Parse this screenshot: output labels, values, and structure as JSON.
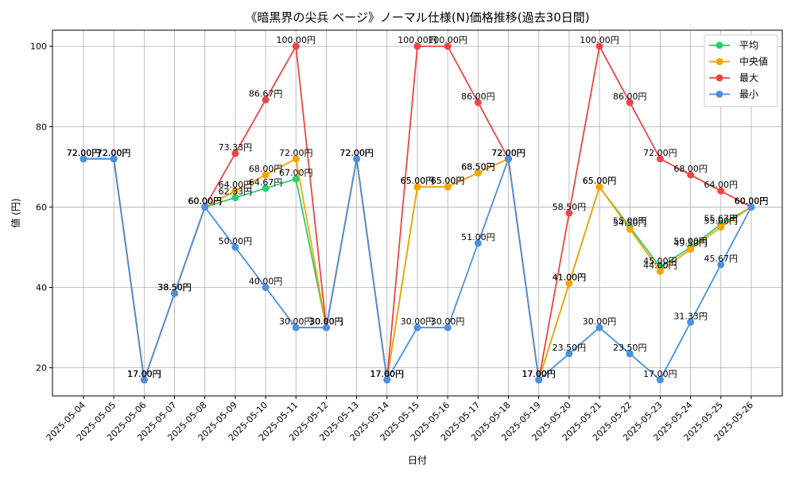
{
  "chart_data": {
    "type": "line",
    "title": "《暗黒界の尖兵 ベージ》ノーマル仕様(N)価格推移(過去30日間)",
    "xlabel": "日付",
    "ylabel": "値 (円)",
    "ylim": [
      13,
      104
    ],
    "yticks": [
      20,
      40,
      60,
      80,
      100
    ],
    "grid": true,
    "legend_position": "top-right",
    "value_suffix": "円",
    "categories": [
      "2025-05-04",
      "2025-05-05",
      "2025-05-06",
      "2025-05-07",
      "2025-05-08",
      "2025-05-09",
      "2025-05-10",
      "2025-05-11",
      "2025-05-12",
      "2025-05-13",
      "2025-05-14",
      "2025-05-15",
      "2025-05-16",
      "2025-05-17",
      "2025-05-18",
      "2025-05-19",
      "2025-05-20",
      "2025-05-21",
      "2025-05-22",
      "2025-05-23",
      "2025-05-24",
      "2025-05-25",
      "2025-05-26"
    ],
    "series": [
      {
        "name": "平均",
        "color": "#2ecc71",
        "values": [
          72,
          72,
          17,
          38.5,
          60,
          62.33,
          64.67,
          67,
          30,
          72,
          17,
          65,
          65,
          68.5,
          72,
          17,
          41,
          65,
          55,
          45,
          50,
          55.67,
          60
        ]
      },
      {
        "name": "中央値",
        "color": "#f5a500",
        "values": [
          72,
          72,
          17,
          38.5,
          60,
          64,
          68,
          72,
          30,
          72,
          17,
          65,
          65,
          68.5,
          72,
          17,
          41,
          65,
          54.5,
          44,
          49.5,
          55,
          60
        ]
      },
      {
        "name": "最大",
        "color": "#ef4444",
        "values": [
          72,
          72,
          17,
          38.5,
          60,
          73.33,
          86.67,
          100,
          30,
          72,
          17,
          100,
          100,
          86,
          72,
          17,
          58.5,
          100,
          86,
          72,
          68,
          64,
          60
        ]
      },
      {
        "name": "最小",
        "color": "#4a90e2",
        "values": [
          72,
          72,
          17,
          38.5,
          60,
          50,
          40,
          30,
          30,
          72,
          17,
          30,
          30,
          51,
          72,
          17,
          23.5,
          30,
          23.5,
          17,
          31.33,
          45.67,
          60
        ]
      }
    ]
  }
}
